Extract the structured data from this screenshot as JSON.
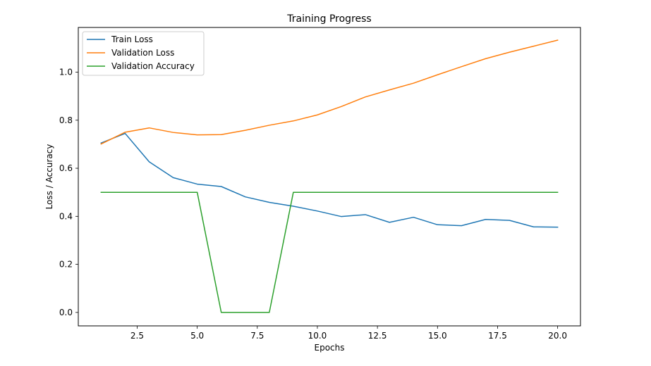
{
  "chart_data": {
    "type": "line",
    "title": "Training Progress",
    "xlabel": "Epochs",
    "ylabel": "Loss / Accuracy",
    "xlim": [
      0.05,
      20.95
    ],
    "ylim": [
      -0.056,
      1.186
    ],
    "xticks": [
      2.5,
      5.0,
      7.5,
      10.0,
      12.5,
      15.0,
      17.5,
      20.0
    ],
    "xtick_labels": [
      "2.5",
      "5.0",
      "7.5",
      "10.0",
      "12.5",
      "15.0",
      "17.5",
      "20.0"
    ],
    "yticks": [
      0.0,
      0.2,
      0.4,
      0.6,
      0.8,
      1.0
    ],
    "ytick_labels": [
      "0.0",
      "0.2",
      "0.4",
      "0.6",
      "0.8",
      "1.0"
    ],
    "grid": false,
    "legend_position": "top-left",
    "x": [
      1,
      2,
      3,
      4,
      5,
      6,
      7,
      8,
      9,
      10,
      11,
      12,
      13,
      14,
      15,
      16,
      17,
      18,
      19,
      20
    ],
    "series": [
      {
        "name": "Train Loss",
        "color": "#1f77b4",
        "values": [
          0.705,
          0.745,
          0.627,
          0.561,
          0.534,
          0.524,
          0.481,
          0.458,
          0.442,
          0.422,
          0.399,
          0.407,
          0.375,
          0.396,
          0.365,
          0.361,
          0.387,
          0.383,
          0.356,
          0.355
        ]
      },
      {
        "name": "Validation Loss",
        "color": "#ff7f0e",
        "values": [
          0.701,
          0.75,
          0.768,
          0.749,
          0.739,
          0.74,
          0.758,
          0.779,
          0.797,
          0.822,
          0.857,
          0.897,
          0.926,
          0.954,
          0.989,
          1.023,
          1.056,
          1.083,
          1.108,
          1.133
        ]
      },
      {
        "name": "Validation Accuracy",
        "color": "#2ca02c",
        "values": [
          0.5,
          0.5,
          0.5,
          0.5,
          0.5,
          0.0,
          0.0,
          0.0,
          0.5,
          0.5,
          0.5,
          0.5,
          0.5,
          0.5,
          0.5,
          0.5,
          0.5,
          0.5,
          0.5,
          0.5
        ]
      }
    ]
  }
}
